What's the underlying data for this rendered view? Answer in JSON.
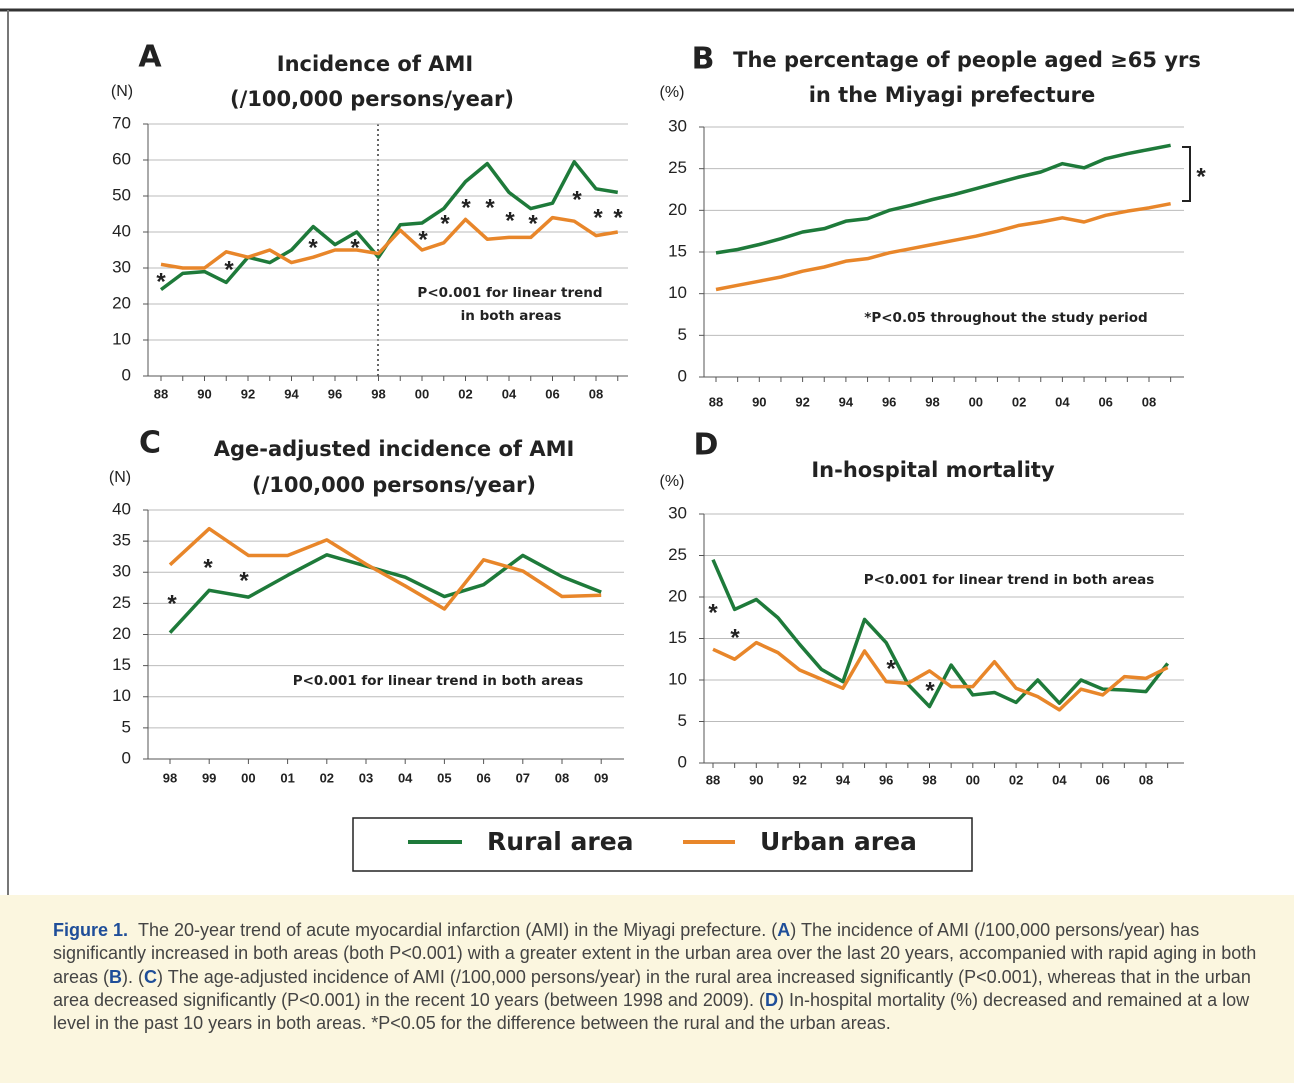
{
  "chart_data": [
    {
      "type": "line",
      "panel": "A",
      "title": [
        "Incidence of AMI",
        "(/100,000 persons/year)"
      ],
      "y_label": "(N)",
      "x": [
        "88",
        null,
        "90",
        null,
        "92",
        null,
        "94",
        null,
        "96",
        null,
        "98",
        null,
        "00",
        null,
        "02",
        null,
        "04",
        null,
        "06",
        null,
        "08",
        null
      ],
      "series": [
        {
          "name": "Rural area",
          "color": "#1e7a3a",
          "values": [
            24,
            28.5,
            29,
            26,
            33,
            31.5,
            35,
            41.5,
            36.5,
            40,
            33,
            42,
            42.5,
            46.5,
            54,
            59,
            51,
            46.5,
            48,
            59.5,
            52,
            51
          ]
        },
        {
          "name": "Urban area",
          "color": "#e8862a",
          "values": [
            31,
            30,
            30,
            34.5,
            33,
            35,
            31.5,
            33,
            35,
            35,
            34,
            40.5,
            35,
            37,
            43.5,
            38,
            38.5,
            38.5,
            44,
            43,
            39,
            40
          ]
        }
      ],
      "ylim": [
        0,
        70
      ],
      "yticks": [
        0,
        10,
        20,
        30,
        40,
        50,
        60,
        70
      ],
      "grid": true,
      "annotations": [
        "P<0.001 for linear trend",
        "in both areas"
      ],
      "asterisks": [
        "*",
        "*",
        "*",
        "*",
        "*",
        "*",
        "*",
        "*",
        "*",
        "*",
        "*",
        "*",
        "*"
      ]
    },
    {
      "type": "line",
      "panel": "B",
      "title": [
        "The percentage of people aged ≥65 yrs",
        "in the Miyagi prefecture"
      ],
      "y_label": "(%)",
      "x": [
        "88",
        null,
        "90",
        null,
        "92",
        null,
        "94",
        null,
        "96",
        null,
        "98",
        null,
        "00",
        null,
        "02",
        null,
        "04",
        null,
        "06",
        null,
        "08",
        null
      ],
      "series": [
        {
          "name": "Rural area",
          "color": "#1e7a3a",
          "values": [
            14.9,
            15.3,
            15.9,
            16.6,
            17.4,
            17.8,
            18.7,
            19.0,
            20.0,
            20.6,
            21.3,
            21.9,
            22.6,
            23.3,
            24.0,
            24.6,
            25.6,
            25.1,
            26.2,
            26.8,
            27.3,
            27.8
          ]
        },
        {
          "name": "Urban area",
          "color": "#e8862a",
          "values": [
            10.5,
            11.0,
            11.5,
            12.0,
            12.7,
            13.2,
            13.9,
            14.2,
            14.9,
            15.4,
            15.9,
            16.4,
            16.9,
            17.5,
            18.2,
            18.6,
            19.1,
            18.6,
            19.4,
            19.9,
            20.3,
            20.8
          ]
        }
      ],
      "ylim": [
        0,
        30
      ],
      "yticks": [
        0,
        5,
        10,
        15,
        20,
        25,
        30
      ],
      "grid": true,
      "annotations": [
        "*P<0.05 throughout the study period"
      ],
      "asterisks": [
        "*"
      ]
    },
    {
      "type": "line",
      "panel": "C",
      "title": [
        "Age-adjusted incidence of AMI",
        "(/100,000 persons/year)"
      ],
      "y_label": "(N)",
      "x": [
        "98",
        "99",
        "00",
        "01",
        "02",
        "03",
        "04",
        "05",
        "06",
        "07",
        "08",
        "09"
      ],
      "series": [
        {
          "name": "Rural area",
          "color": "#1e7a3a",
          "values": [
            20.3,
            27.1,
            26,
            29.5,
            32.8,
            31,
            29.2,
            26.1,
            28,
            32.7,
            29.3,
            26.8
          ]
        },
        {
          "name": "Urban area",
          "color": "#e8862a",
          "values": [
            31.2,
            37,
            32.7,
            32.7,
            35.2,
            31.3,
            27.8,
            24.1,
            32,
            30.2,
            26.1,
            26.3
          ]
        }
      ],
      "ylim": [
        0,
        40
      ],
      "yticks": [
        0,
        5,
        10,
        15,
        20,
        25,
        30,
        35,
        40
      ],
      "grid": true,
      "annotations": [
        "P<0.001 for linear trend in both areas"
      ],
      "asterisks": [
        "*",
        "*",
        "*"
      ]
    },
    {
      "type": "line",
      "panel": "D",
      "title": [
        "In-hospital mortality"
      ],
      "y_label": "(%)",
      "x": [
        "88",
        null,
        "90",
        null,
        "92",
        null,
        "94",
        null,
        "96",
        null,
        "98",
        null,
        "00",
        null,
        "02",
        null,
        "04",
        null,
        "06",
        null,
        "08",
        null
      ],
      "series": [
        {
          "name": "Rural area",
          "color": "#1e7a3a",
          "values": [
            24.5,
            18.5,
            19.7,
            17.5,
            14.3,
            11.3,
            9.8,
            17.3,
            14.5,
            9.5,
            6.8,
            11.8,
            8.2,
            8.5,
            7.3,
            10,
            7.2,
            10,
            8.9,
            8.8,
            8.6,
            12
          ]
        },
        {
          "name": "Urban area",
          "color": "#e8862a",
          "values": [
            13.7,
            12.5,
            14.5,
            13.3,
            11.2,
            10.1,
            9,
            13.5,
            9.8,
            9.6,
            11.1,
            9.2,
            9.2,
            12.2,
            9,
            8,
            6.4,
            8.9,
            8.2,
            10.4,
            10.2,
            11.5
          ]
        }
      ],
      "ylim": [
        0,
        30
      ],
      "yticks": [
        0,
        5,
        10,
        15,
        20,
        25,
        30
      ],
      "grid": true,
      "annotations": [
        "P<0.001 for linear trend in both areas"
      ],
      "asterisks": [
        "*",
        "*",
        "*",
        "*"
      ]
    }
  ],
  "caption": {
    "label": "Figure 1.",
    "parts": [
      "The 20-year trend of acute myocardial infarction (AMI) in the Miyagi prefecture. (",
      "A",
      ") The incidence of AMI (/100,000 persons/year) has significantly increased in both areas (both P<0.001) with a greater extent in the urban area over the last 20 years, accompanied with rapid aging in both areas (",
      "B",
      "). (",
      "C",
      ") The age-adjusted incidence of AMI (/100,000 persons/year) in the rural area increased significantly (P<0.001), whereas that in the urban area decreased significantly (P<0.001) in the recent 10 years (between 1998 and 2009). (",
      "D",
      ") In-hospital mortality (%) decreased and remained at a low level in the past 10 years in both areas. *P<0.05 for the difference between the rural and the urban areas."
    ]
  }
}
